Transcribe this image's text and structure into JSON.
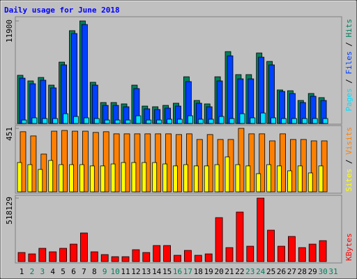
{
  "chart_data": [
    {
      "type": "bar",
      "title": "Daily usage for June 2018",
      "categories": [
        "1",
        "2",
        "3",
        "4",
        "5",
        "6",
        "7",
        "8",
        "9",
        "10",
        "11",
        "12",
        "13",
        "14",
        "15",
        "16",
        "17",
        "18",
        "19",
        "20",
        "21",
        "22",
        "23",
        "24",
        "25",
        "26",
        "27",
        "28",
        "29",
        "30",
        "31"
      ],
      "category_colors": [
        "#000000",
        "#00805c",
        "#00805c",
        "#000000",
        "#000000",
        "#000000",
        "#000000",
        "#000000",
        "#00805c",
        "#00805c",
        "#000000",
        "#000000",
        "#000000",
        "#000000",
        "#000000",
        "#00805c",
        "#00805c",
        "#000000",
        "#000000",
        "#000000",
        "#000000",
        "#000000",
        "#00805c",
        "#00805c",
        "#000000",
        "#000000",
        "#000000",
        "#000000",
        "#000000",
        "#00805c",
        "#00805c"
      ],
      "legend_separator": " / ",
      "series": [
        {
          "name": "Hits",
          "color": "#00805c",
          "values": [
            5590,
            4940,
            5340,
            4450,
            7120,
            10770,
            11900,
            4780,
            2430,
            2430,
            2270,
            4450,
            2020,
            1940,
            2100,
            2350,
            5420,
            2670,
            2270,
            5420,
            8340,
            5670,
            5670,
            8180,
            7200,
            3890,
            3800,
            2670,
            3480,
            3000,
            null
          ]
        },
        {
          "name": "Files",
          "color": "#0040ff",
          "values": [
            5260,
            4610,
            5020,
            4130,
            6800,
            10440,
            11490,
            4450,
            2100,
            2100,
            1940,
            4050,
            1700,
            1620,
            1780,
            2020,
            4860,
            2350,
            1940,
            4940,
            7850,
            5180,
            5180,
            7690,
            6800,
            3720,
            3480,
            2430,
            3160,
            2670,
            null
          ]
        },
        {
          "name": "Pages",
          "color": "#00e0ff",
          "values": [
            400,
            650,
            570,
            570,
            1130,
            810,
            650,
            570,
            400,
            400,
            400,
            890,
            400,
            400,
            490,
            490,
            890,
            490,
            490,
            810,
            570,
            1130,
            650,
            1210,
            650,
            570,
            570,
            570,
            570,
            570,
            null
          ]
        }
      ],
      "ylim": [
        0,
        11900
      ],
      "yticks": [
        11900
      ]
    },
    {
      "type": "bar",
      "series": [
        {
          "name": "Visits",
          "color": "#ff8000",
          "values": [
            427,
            397,
            268,
            431,
            436,
            431,
            431,
            422,
            427,
            412,
            412,
            412,
            412,
            412,
            412,
            407,
            412,
            372,
            407,
            372,
            372,
            451,
            412,
            412,
            362,
            412,
            372,
            372,
            362,
            362,
            null
          ]
        },
        {
          "name": "Sites",
          "color": "#ffff00",
          "values": [
            208,
            193,
            159,
            223,
            193,
            193,
            193,
            184,
            184,
            198,
            208,
            208,
            208,
            208,
            198,
            184,
            193,
            184,
            184,
            193,
            248,
            193,
            184,
            129,
            193,
            184,
            149,
            184,
            134,
            184,
            null
          ]
        }
      ],
      "ylim": [
        0,
        451
      ],
      "yticks": [
        451
      ]
    },
    {
      "type": "bar",
      "series": [
        {
          "name": "KBytes",
          "color": "#ff0000",
          "values": [
            74020,
            62630,
            108190,
            79720,
            108190,
            142350,
            233450,
            79720,
            56940,
            39860,
            39860,
            96800,
            74020,
            130960,
            130960,
            51250,
            91100,
            51250,
            62630,
            358720,
            113880,
            404270,
            125270,
            518129,
            256230,
            125270,
            204980,
            113880,
            142350,
            170820,
            null
          ]
        }
      ],
      "ylim": [
        0,
        518129
      ],
      "yticks": [
        518129
      ]
    }
  ]
}
